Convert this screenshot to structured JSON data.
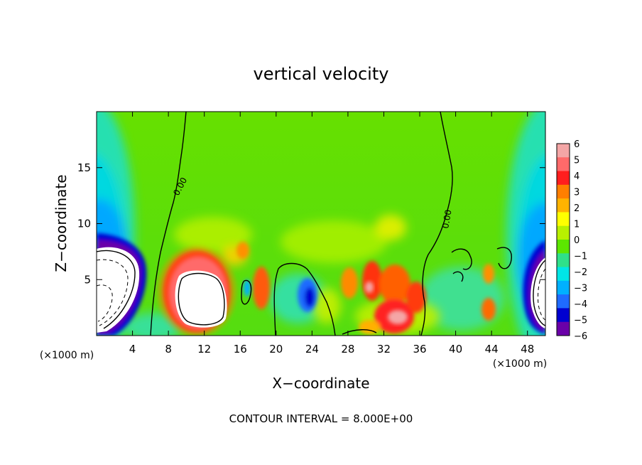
{
  "chart_data": {
    "type": "heatmap",
    "title": "vertical velocity",
    "xlabel": "X−coordinate",
    "ylabel": "Z−coordinate",
    "x_unit_left": "(×1000 m)",
    "x_unit_right": "(×1000 m)",
    "footer": "CONTOUR INTERVAL = 8.000E+00",
    "xlim": [
      0,
      50
    ],
    "ylim": [
      0,
      20
    ],
    "x_ticks": [
      4,
      8,
      12,
      16,
      20,
      24,
      28,
      32,
      36,
      40,
      44,
      48
    ],
    "y_ticks": [
      5,
      10,
      15
    ],
    "grid": false,
    "colorbar": {
      "min": -6,
      "max": 6,
      "labels": [
        6,
        5,
        4,
        3,
        2,
        1,
        0,
        -1,
        -2,
        -3,
        -4,
        -5,
        -6
      ],
      "colors": [
        "#f4a6a6",
        "#ff6a6a",
        "#ff1e1e",
        "#ff7f00",
        "#ffb300",
        "#ffff00",
        "#b8f000",
        "#5ce600",
        "#2fe08a",
        "#00e6e6",
        "#00b0ff",
        "#1f6bff",
        "#0000d0",
        "#6a00a8"
      ]
    },
    "contour_label": "0.00",
    "features": [
      {
        "kind": "downdraft",
        "x": 2.5,
        "z": 4,
        "strength": -8
      },
      {
        "kind": "updraft",
        "x": 11.5,
        "z": 3.6,
        "strength": 8
      },
      {
        "kind": "updraft",
        "x": 17.5,
        "z": 4.5,
        "strength": 3
      },
      {
        "kind": "downdraft",
        "x": 23.6,
        "z": 3.3,
        "strength": -3.5
      },
      {
        "kind": "updraft",
        "x": 30.5,
        "z": 4.5,
        "strength": 4.5
      },
      {
        "kind": "updraft",
        "x": 33,
        "z": 1.5,
        "strength": 5
      },
      {
        "kind": "updraft",
        "x": 43.5,
        "z": 3,
        "strength": 3
      },
      {
        "kind": "downdraft",
        "x": 49,
        "z": 3.5,
        "strength": -8
      }
    ]
  }
}
